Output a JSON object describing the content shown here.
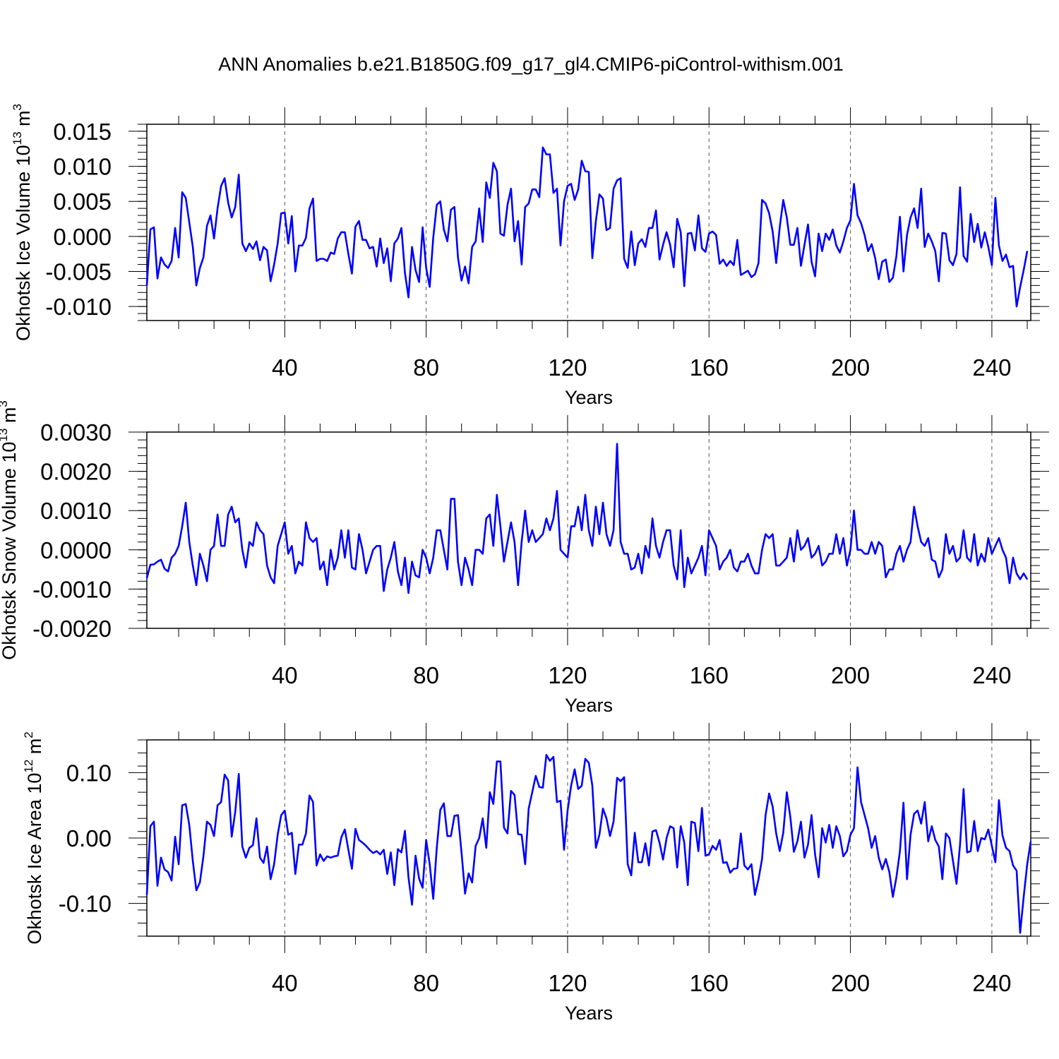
{
  "title": "ANN Anomalies b.e21.B1850G.f09_g17_gl4.CMIP6-piControl-withism.001",
  "line_color": "#0000ff",
  "chart_data": [
    {
      "type": "line",
      "name": "ice-volume",
      "ylabel_main": "Okhotsk Ice Volume 10",
      "ylabel_exp": "13",
      "ylabel_unit": "m",
      "ylabel_unit_exp": "3",
      "xlabel": "Years",
      "xlim": [
        1,
        251
      ],
      "ylim": [
        -0.012,
        0.016
      ],
      "xticks": [
        40,
        80,
        120,
        160,
        200,
        240
      ],
      "xtick_labels": [
        "40",
        "80",
        "120",
        "160",
        "200",
        "240"
      ],
      "yticks": [
        -0.01,
        -0.005,
        0.0,
        0.005,
        0.01,
        0.015
      ],
      "ytick_labels": [
        "-0.010",
        "-0.005",
        "0.000",
        "0.005",
        "0.010",
        "0.015"
      ],
      "series": [
        {
          "name": "Okhotsk Ice Volume",
          "values": [
            -0.007,
            0.001,
            0.0013,
            -0.006,
            -0.003,
            -0.004,
            -0.0045,
            -0.0035,
            0.0012,
            -0.003,
            0.0063,
            0.0055,
            0.002,
            -0.0015,
            -0.007,
            -0.0045,
            -0.003,
            0.0015,
            0.003,
            -0.0003,
            0.004,
            0.0072,
            0.0083,
            0.0048,
            0.0027,
            0.0042,
            0.0088,
            -0.001,
            -0.0021,
            -0.001,
            -0.0018,
            -0.0007,
            -0.0034,
            -0.0015,
            -0.002,
            -0.0064,
            -0.004,
            -0.001,
            0.0033,
            0.0034,
            -0.001,
            0.0029,
            -0.005,
            -0.0013,
            -0.0013,
            -0.0002,
            0.004,
            0.0054,
            -0.0035,
            -0.0032,
            -0.0032,
            -0.0035,
            -0.0023,
            -0.0025,
            -0.0003,
            0.0006,
            0.0006,
            -0.0025,
            -0.0053,
            0.0014,
            0.0022,
            -0.0005,
            -0.0005,
            -0.0017,
            -0.0015,
            -0.0043,
            -0.0003,
            -0.0038,
            -0.0017,
            -0.0064,
            -0.001,
            -0.0003,
            0.0012,
            -0.0052,
            -0.0087,
            -0.0015,
            -0.0048,
            -0.0065,
            0.0013,
            -0.0045,
            -0.0072,
            -0.0002,
            0.0045,
            0.005,
            0.001,
            -0.0007,
            0.0038,
            0.0042,
            -0.003,
            -0.0063,
            -0.0043,
            -0.0067,
            -0.0015,
            -0.0007,
            0.004,
            -0.0008,
            0.0077,
            0.0055,
            0.0105,
            0.0093,
            0.0004,
            0.0001,
            0.0045,
            0.0068,
            -0.0007,
            0.0022,
            -0.004,
            0.0042,
            0.0047,
            0.0067,
            0.0067,
            0.0056,
            0.0127,
            0.0117,
            0.0117,
            0.0062,
            0.0068,
            -0.0013,
            0.005,
            0.0072,
            0.0075,
            0.0052,
            0.0067,
            0.0108,
            0.0093,
            0.0092,
            -0.0031,
            0.0022,
            0.006,
            0.0054,
            0.0009,
            0.0012,
            0.0068,
            0.008,
            0.0083,
            -0.0032,
            -0.0045,
            0.0007,
            -0.0041,
            -0.001,
            -0.0004,
            -0.0015,
            0.0012,
            0.0012,
            0.0037,
            -0.0033,
            -0.0012,
            0.0006,
            -0.0012,
            -0.0044,
            0.0025,
            0.0006,
            -0.0071,
            0.0004,
            0.0005,
            -0.002,
            0.003,
            -0.0017,
            -0.0022,
            0.0004,
            0.0007,
            0.0002,
            -0.0039,
            -0.0033,
            -0.0042,
            -0.0035,
            -0.0041,
            -0.0005,
            -0.0055,
            -0.0052,
            -0.0049,
            -0.0058,
            -0.0054,
            -0.0038,
            0.0052,
            0.0047,
            0.0033,
            0.0007,
            -0.0038,
            0.0013,
            0.0052,
            0.0027,
            -0.0012,
            -0.0012,
            0.0012,
            -0.0042,
            -0.0012,
            0.0017,
            -0.0036,
            -0.0057,
            0.0004,
            -0.0021,
            0.0004,
            -0.0005,
            0.001,
            -0.0013,
            -0.0023,
            -0.0007,
            0.0012,
            0.0023,
            0.0075,
            0.003,
            0.0019,
            0.0002,
            -0.0021,
            -0.0011,
            -0.0031,
            -0.0061,
            -0.0036,
            -0.0033,
            -0.0065,
            -0.0059,
            -0.0028,
            0.0028,
            -0.005,
            0.0002,
            0.0027,
            0.004,
            0.0012,
            0.0068,
            -0.0015,
            0.0004,
            -0.0007,
            -0.0021,
            -0.0064,
            0.0005,
            0.0004,
            -0.0034,
            -0.0041,
            -0.0025,
            0.007,
            -0.0028,
            -0.0036,
            0.0032,
            -0.0008,
            0.0018,
            -0.0016,
            0.0006,
            -0.0015,
            -0.0041,
            0.0055,
            -0.0013,
            -0.0035,
            -0.0026,
            -0.0044,
            -0.0042,
            -0.01,
            -0.0072,
            -0.0048,
            -0.0021
          ]
        }
      ]
    },
    {
      "type": "line",
      "name": "snow-volume",
      "ylabel_main": "Okhotsk Snow Volume 10",
      "ylabel_exp": "13",
      "ylabel_unit": "m",
      "ylabel_unit_exp": "3",
      "xlabel": "Years",
      "xlim": [
        1,
        251
      ],
      "ylim": [
        -0.002,
        0.003
      ],
      "xticks": [
        40,
        80,
        120,
        160,
        200,
        240
      ],
      "xtick_labels": [
        "40",
        "80",
        "120",
        "160",
        "200",
        "240"
      ],
      "yticks": [
        -0.002,
        -0.001,
        0.0,
        0.001,
        0.002,
        0.003
      ],
      "ytick_labels": [
        "-0.0020",
        "-0.0010",
        "0.0000",
        "0.0010",
        "0.0020",
        "0.0030"
      ],
      "series": [
        {
          "name": "Okhotsk Snow Volume",
          "values": [
            -0.00072,
            -0.00038,
            -0.00037,
            -0.0003,
            -0.00025,
            -0.00048,
            -0.00055,
            -0.0002,
            -0.0001,
            0.0001,
            0.0006,
            0.0012,
            0.0002,
            -0.0004,
            -0.0009,
            -0.0001,
            -0.0004,
            -0.0008,
            0.0,
            0.0001,
            0.0009,
            0.0001,
            0.0001,
            0.0009,
            0.0011,
            0.0007,
            0.0008,
            0.0,
            -0.00045,
            0.0002,
            0.0001,
            0.0007,
            0.0005,
            0.0004,
            -0.0004,
            -0.0007,
            -0.00085,
            0.0001,
            0.0004,
            0.0007,
            -0.0001,
            0.0001,
            -0.0006,
            -0.0003,
            -0.0004,
            0.0007,
            0.0003,
            0.0002,
            0.0003,
            -0.0005,
            -0.0003,
            -0.0009,
            0.0,
            -0.0005,
            -0.0002,
            0.0005,
            -0.0002,
            0.0005,
            -0.00045,
            -0.0005,
            0.0004,
            0.0,
            -0.0006,
            -0.0003,
            0.0,
            0.0001,
            0.0001,
            -0.00105,
            -0.0005,
            -0.0002,
            0.0002,
            -0.00055,
            -0.0009,
            -0.0002,
            -0.0011,
            -0.0003,
            -0.00065,
            -0.0007,
            0.0,
            -0.0002,
            -0.0006,
            -0.0002,
            0.0005,
            0.0005,
            0.0,
            -0.0005,
            0.0013,
            0.0013,
            -0.0003,
            -0.0009,
            -0.0002,
            -0.0005,
            -0.0009,
            0.0,
            0.0,
            -0.0001,
            0.0008,
            0.0009,
            0.0001,
            0.0014,
            0.0006,
            -0.0003,
            0.0002,
            0.0007,
            0.0002,
            -0.0009,
            0.0002,
            0.001,
            0.0002,
            0.0005,
            0.0002,
            0.0003,
            0.0004,
            0.0008,
            0.0005,
            0.0008,
            0.0015,
            0.0,
            -0.0001,
            -0.0002,
            0.0006,
            0.0006,
            0.0011,
            0.0005,
            0.0014,
            0.0005,
            0.0001,
            0.0011,
            0.0004,
            0.0012,
            0.0004,
            0.0001,
            0.0005,
            0.0027,
            0.0002,
            -0.0001,
            -0.0001,
            -0.0005,
            -0.00045,
            -0.0001,
            -0.0006,
            0.0001,
            -0.0002,
            0.0008,
            0.0001,
            -0.0002,
            0.0002,
            0.0005,
            0.0005,
            -0.0004,
            -0.00075,
            0.0005,
            -0.00095,
            -0.0002,
            -0.0006,
            -0.0004,
            -0.0002,
            0.0001,
            -0.00065,
            0.0005,
            0.0003,
            0.0001,
            -0.0005,
            -0.0003,
            -0.0002,
            0.0,
            -0.00045,
            -0.00055,
            -0.0003,
            -0.0003,
            -0.0001,
            -0.0004,
            -0.0006,
            -0.0006,
            0.0,
            0.0004,
            0.0003,
            0.0004,
            -0.0004,
            -0.0004,
            -0.0003,
            -0.0002,
            0.0003,
            -0.0003,
            0.0005,
            0.0,
            0.0001,
            0.0003,
            -0.0002,
            -0.0001,
            0.0001,
            -0.0004,
            -0.0003,
            -0.0001,
            -0.0001,
            0.0004,
            -0.0001,
            0.0003,
            -0.0004,
            0.0,
            0.001,
            0.0,
            0.0,
            -0.0001,
            -0.0001,
            0.0002,
            -0.0001,
            0.0002,
            0.0001,
            -0.0007,
            -0.0005,
            -0.0005,
            -0.0001,
            0.0001,
            -0.0003,
            0.0,
            0.0002,
            0.0011,
            0.0006,
            0.0002,
            0.0001,
            0.0003,
            -0.00025,
            -0.0003,
            -0.0007,
            -0.0005,
            0.0004,
            -0.0001,
            0.0001,
            -0.0003,
            -0.0002,
            0.0005,
            -0.0002,
            -0.0003,
            0.0004,
            -0.0004,
            -0.0001,
            -0.0003,
            0.0003,
            -0.0001,
            0.0001,
            0.0003,
            0.0,
            -0.0002,
            -0.00085,
            -0.0002,
            -0.0006,
            -0.00075,
            -0.0006,
            -0.00075
          ]
        }
      ]
    },
    {
      "type": "line",
      "name": "ice-area",
      "ylabel_main": "Okhotsk Ice Area 10",
      "ylabel_exp": "12",
      "ylabel_unit": "m",
      "ylabel_unit_exp": "2",
      "xlabel": "Years",
      "xlim": [
        1,
        251
      ],
      "ylim": [
        -0.15,
        0.15
      ],
      "xticks": [
        40,
        80,
        120,
        160,
        200,
        240
      ],
      "xtick_labels": [
        "40",
        "80",
        "120",
        "160",
        "200",
        "240"
      ],
      "yticks": [
        -0.1,
        0.0,
        0.1
      ],
      "ytick_labels": [
        "-0.10",
        "0.00",
        "0.10"
      ],
      "series": [
        {
          "name": "Okhotsk Ice Area",
          "values": [
            -0.087,
            0.018,
            0.025,
            -0.073,
            -0.03,
            -0.048,
            -0.052,
            -0.065,
            0.002,
            -0.04,
            0.05,
            0.052,
            0.02,
            -0.035,
            -0.08,
            -0.068,
            -0.028,
            0.025,
            0.02,
            0.003,
            0.05,
            0.055,
            0.097,
            0.088,
            0.002,
            0.04,
            0.098,
            -0.013,
            -0.03,
            -0.015,
            -0.011,
            0.03,
            -0.03,
            -0.038,
            -0.013,
            -0.063,
            -0.04,
            0.005,
            0.035,
            0.042,
            0.005,
            0.008,
            -0.055,
            -0.01,
            -0.01,
            0.007,
            0.065,
            0.055,
            -0.042,
            -0.025,
            -0.035,
            -0.028,
            -0.03,
            -0.028,
            -0.027,
            0.001,
            0.013,
            -0.018,
            -0.047,
            0.014,
            -0.003,
            -0.007,
            -0.012,
            -0.018,
            -0.023,
            -0.02,
            -0.025,
            -0.018,
            -0.055,
            -0.022,
            -0.072,
            -0.017,
            -0.022,
            0.011,
            -0.06,
            -0.102,
            -0.027,
            -0.062,
            -0.076,
            -0.003,
            -0.04,
            -0.093,
            -0.015,
            0.043,
            0.053,
            0.003,
            0.003,
            0.034,
            0.035,
            -0.022,
            -0.085,
            -0.054,
            -0.068,
            -0.012,
            0.0,
            0.03,
            -0.015,
            0.07,
            0.052,
            0.117,
            0.117,
            0.016,
            0.007,
            0.072,
            0.066,
            0.006,
            0.005,
            -0.04,
            0.045,
            0.07,
            0.095,
            0.078,
            0.077,
            0.127,
            0.118,
            0.124,
            0.055,
            0.057,
            -0.018,
            0.042,
            0.08,
            0.105,
            0.075,
            0.08,
            0.121,
            0.115,
            0.08,
            -0.015,
            0.005,
            0.045,
            0.03,
            0.003,
            0.025,
            0.092,
            0.087,
            0.093,
            -0.04,
            -0.057,
            0.008,
            -0.037,
            -0.037,
            -0.008,
            -0.042,
            0.01,
            0.012,
            -0.007,
            -0.033,
            0.0,
            0.018,
            0.015,
            -0.045,
            0.018,
            -0.007,
            -0.072,
            0.025,
            0.023,
            -0.02,
            0.046,
            -0.027,
            -0.025,
            -0.012,
            -0.018,
            -0.003,
            -0.038,
            -0.037,
            -0.053,
            -0.047,
            -0.046,
            0.007,
            -0.042,
            -0.048,
            -0.04,
            -0.087,
            -0.063,
            -0.032,
            0.035,
            0.068,
            0.048,
            0.007,
            -0.02,
            0.008,
            0.07,
            0.032,
            -0.021,
            -0.005,
            0.025,
            -0.03,
            -0.01,
            0.035,
            -0.025,
            -0.06,
            0.015,
            -0.007,
            0.02,
            -0.015,
            0.018,
            0.003,
            -0.028,
            -0.02,
            0.005,
            0.015,
            0.108,
            0.055,
            0.035,
            0.015,
            -0.015,
            0.003,
            -0.03,
            -0.048,
            -0.032,
            -0.052,
            -0.09,
            -0.06,
            -0.02,
            0.054,
            -0.063,
            0.005,
            0.037,
            0.042,
            0.022,
            0.055,
            -0.005,
            0.018,
            -0.003,
            -0.013,
            -0.063,
            0.007,
            0.0,
            -0.035,
            -0.07,
            -0.01,
            0.075,
            -0.022,
            -0.02,
            0.026,
            -0.02,
            0.0,
            -0.002,
            0.013,
            -0.012,
            -0.037,
            0.058,
            0.004,
            -0.015,
            -0.02,
            -0.042,
            -0.05,
            -0.145,
            -0.09,
            -0.04,
            -0.005
          ]
        }
      ]
    }
  ]
}
